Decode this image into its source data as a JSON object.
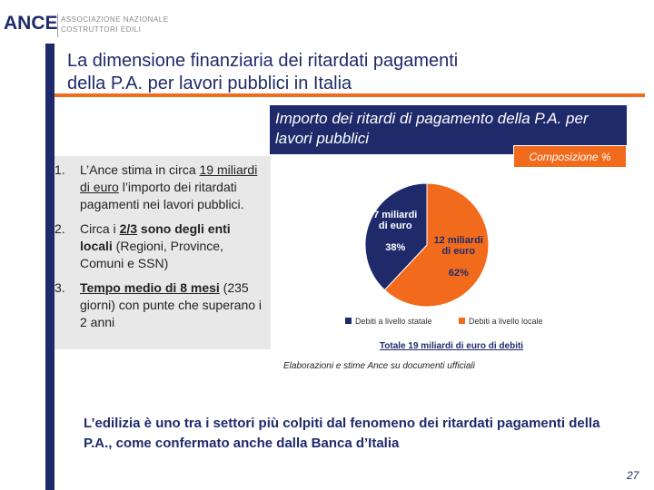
{
  "logo": {
    "name": "ANCE",
    "line1": "ASSOCIAZIONE NAZIONALE",
    "line2": "COSTRUTTORI EDILI"
  },
  "header": {
    "title_line1": "La dimensione finanziaria dei ritardati pagamenti",
    "title_line2": "della P.A. per lavori pubblici in Italia"
  },
  "list": [
    {
      "number": "1.",
      "runs": [
        {
          "text": "L’Ance stima in circa ",
          "style": "normal"
        },
        {
          "text": "19 miliardi di euro",
          "style": "underline"
        },
        {
          "text": " l’importo dei ritardati pagamenti nei lavori pubblici.",
          "style": "normal"
        }
      ]
    },
    {
      "number": "2.",
      "runs": [
        {
          "text": "Circa i ",
          "style": "normal"
        },
        {
          "text": "2/3",
          "style": "bold-underline"
        },
        {
          "text": " sono degli enti locali",
          "style": "bold"
        },
        {
          "text": " (Regioni, Province, Comuni e SSN)",
          "style": "normal"
        }
      ]
    },
    {
      "number": "3.",
      "runs": [
        {
          "text": "Tempo medio di 8 mesi",
          "style": "bold-underline"
        },
        {
          "text": " (235 giorni) con punte che superano i 2 anni",
          "style": "normal"
        }
      ]
    }
  ],
  "chart_data": {
    "type": "pie",
    "title": "Importo dei ritardi di pagamento della P.A. per lavori pubblici",
    "subtitle": "Composizione %",
    "categories": [
      "Debiti a livello statale",
      "Debiti a livello locale"
    ],
    "values": [
      38,
      62
    ],
    "value_labels": [
      "38%",
      "62%"
    ],
    "slice_labels": [
      "7 miliardi di euro",
      "12 miliardi di euro"
    ],
    "colors": [
      "#1f2a6b",
      "#f26b1d"
    ],
    "total": "Totale 19 miliardi di euro di debiti",
    "source": "Elaborazioni e stime Ance su documenti ufficiali"
  },
  "conclusion": "L’edilizia è uno tra i settori più colpiti dal fenomeno dei ritardati pagamenti della P.A., come confermato anche dalla Banca d’Italia",
  "footer": {
    "page": "27"
  }
}
